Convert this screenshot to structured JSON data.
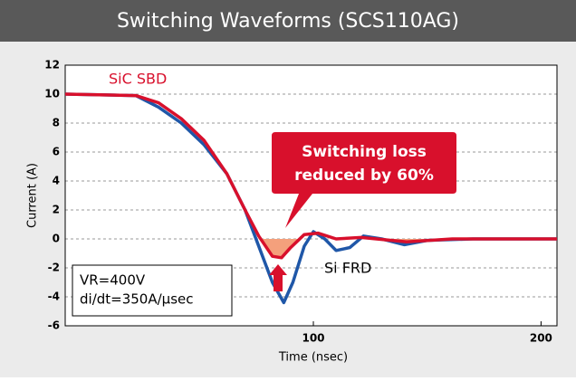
{
  "chart_data": {
    "type": "line",
    "title": "Switching Waveforms (SCS110AG)",
    "x_label": "Time (nsec)",
    "y_label": "Current (A)",
    "xlim": [
      -9,
      207
    ],
    "xticks": [
      100,
      200
    ],
    "ylim": [
      -6,
      12
    ],
    "yticks": [
      -6,
      -4,
      -2,
      0,
      2,
      4,
      6,
      8,
      10,
      12
    ],
    "grid": true,
    "series": [
      {
        "name": "Si FRD",
        "color": "#1f57a8",
        "x": [
          -9,
          22,
          32,
          42,
          52,
          62,
          70,
          76,
          82,
          87,
          91,
          96,
          100,
          105,
          110,
          116,
          122,
          130,
          140,
          150,
          170,
          207
        ],
        "values": [
          10,
          9.9,
          9.1,
          8,
          6.5,
          4.5,
          2,
          -0.5,
          -3,
          -4.4,
          -3,
          -0.5,
          0.5,
          0,
          -0.8,
          -0.6,
          0.2,
          0,
          -0.4,
          -0.1,
          0,
          0
        ]
      },
      {
        "name": "SiC SBD",
        "color": "#d8102c",
        "x": [
          -9,
          22,
          32,
          42,
          52,
          62,
          70,
          76,
          82,
          86,
          90,
          96,
          102,
          110,
          121,
          141,
          161,
          207
        ],
        "values": [
          10,
          9.9,
          9.4,
          8.3,
          6.8,
          4.5,
          2,
          0.2,
          -1.2,
          -1.3,
          -0.6,
          0.3,
          0.4,
          0,
          0.1,
          -0.2,
          0,
          0
        ]
      }
    ],
    "annotation": [
      "Switching loss",
      "reduced by 60%"
    ],
    "conditions": [
      "VR=400V",
      "di/dt=350A/μsec"
    ]
  }
}
